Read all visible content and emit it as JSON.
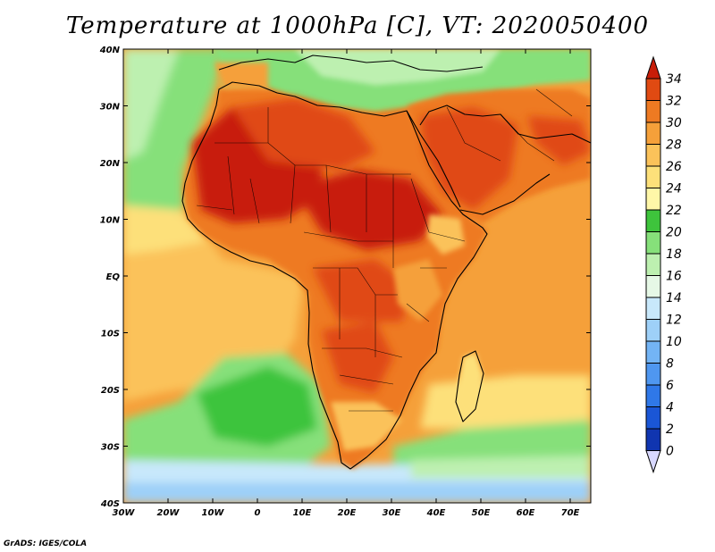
{
  "title": "Temperature at 1000hPa [C], VT: 2020050400",
  "credit": "GrADS: IGES/COLA",
  "axes": {
    "y_ticks": [
      "40N",
      "30N",
      "20N",
      "10N",
      "EQ",
      "10S",
      "20S",
      "30S",
      "40S"
    ],
    "x_ticks": [
      "30W",
      "20W",
      "10W",
      "0",
      "10E",
      "20E",
      "30E",
      "40E",
      "50E",
      "60E",
      "70E"
    ]
  },
  "colorbar": {
    "labels": [
      "0",
      "2",
      "4",
      "6",
      "8",
      "10",
      "12",
      "14",
      "16",
      "18",
      "20",
      "22",
      "24",
      "26",
      "28",
      "30",
      "32",
      "34"
    ],
    "colors": [
      "#0a1a7a",
      "#1035b0",
      "#1a56d6",
      "#2f78e8",
      "#4f97f0",
      "#73b4f5",
      "#9ed0f8",
      "#c8e8fb",
      "#e6f8e6",
      "#bdf0b0",
      "#86e07a",
      "#3ec43c",
      "#fff7a8",
      "#fde07a",
      "#fbc25a",
      "#f5a03a",
      "#ee7a22",
      "#e04a12",
      "#c81d08"
    ]
  },
  "map": {
    "region": "Africa and Arabian Peninsula",
    "colors": {
      "ocean_south_deep": "#9ed0f8",
      "ocean_south": "#c8e8fb",
      "ocean_green": "#86e07a",
      "ocean_light_green": "#bdf0b0",
      "ocean_warm": "#fbc25a",
      "ocean_orange": "#f5a03a",
      "land_hot": "#ee7a22",
      "land_hotter": "#e04a12",
      "land_hottest": "#c81d08",
      "mediterranean": "#86e07a",
      "coast": "#000000"
    }
  }
}
